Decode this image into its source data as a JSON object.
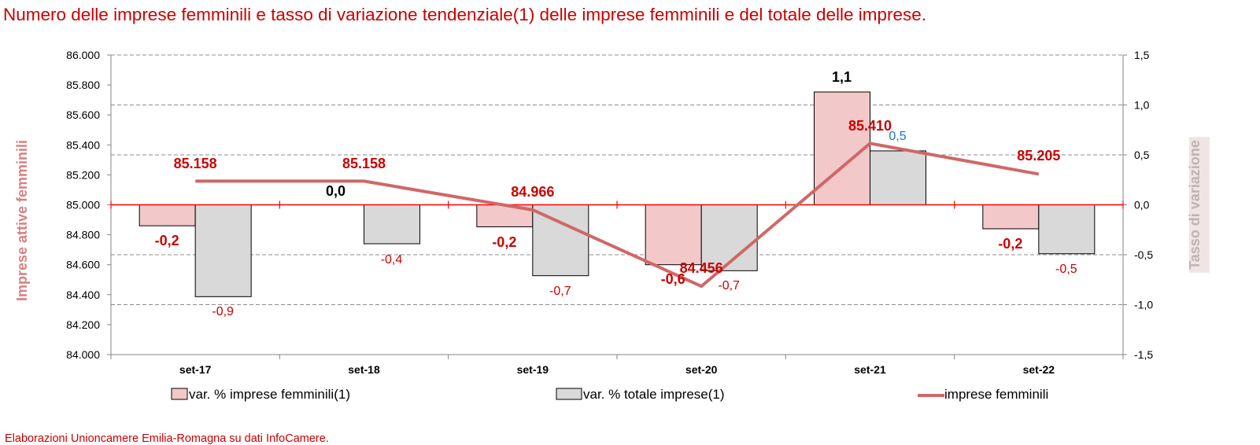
{
  "title": "Numero delle imprese femminili e tasso di variazione tendenziale(1) delle imprese femminili e del totale delle imprese.",
  "footer": "Elaborazioni Unioncamere Emilia-Romagna su dati InfoCamere.",
  "colors": {
    "accent_red": "#cc0000",
    "series_fem_bar": "#f2c8c8",
    "series_tot_bar": "#d9d9d9",
    "series_line": "#d06767",
    "zero_line": "#ff0000",
    "left_axis_title": "#d98080",
    "right_axis_title": "#bfb3b3",
    "blue_label": "#1f6fc6"
  },
  "chart_data": {
    "type": "bar+line",
    "categories": [
      "set-17",
      "set-18",
      "set-19",
      "set-20",
      "set-21",
      "set-22"
    ],
    "y_left": {
      "label": "Imprese attive femminili",
      "range": [
        84000,
        86000
      ],
      "ticks": [
        "84.000",
        "84.200",
        "84.400",
        "84.600",
        "84.800",
        "85.000",
        "85.200",
        "85.400",
        "85.600",
        "85.800",
        "86.000"
      ]
    },
    "y_right": {
      "label": "Tasso di variazione",
      "range": [
        -1.5,
        1.5
      ],
      "ticks": [
        "-1,5",
        "-1,0",
        "-0,5",
        "0,0",
        "0,5",
        "1,0",
        "1,5"
      ]
    },
    "grid": true,
    "legend_position": "bottom",
    "series": [
      {
        "name": "var. % imprese femminili(1)",
        "kind": "bar",
        "axis": "right",
        "values": [
          -0.21,
          0.0,
          -0.22,
          -0.6,
          1.13,
          -0.24
        ],
        "labels": [
          "-0,2",
          "0,0",
          "-0,2",
          "-0,6",
          "1,1",
          "-0,2"
        ]
      },
      {
        "name": "var. % totale imprese(1)",
        "kind": "bar",
        "axis": "right",
        "values": [
          -0.92,
          -0.39,
          -0.71,
          -0.66,
          0.54,
          -0.49
        ],
        "labels": [
          "-0,9",
          "-0,4",
          "-0,7",
          "-0,7",
          "0,5",
          "-0,5"
        ]
      },
      {
        "name": "imprese femminili",
        "kind": "line",
        "axis": "left",
        "values": [
          85158,
          85158,
          84966,
          84456,
          85410,
          85205
        ],
        "labels": [
          "85.158",
          "85.158",
          "84.966",
          "84.456",
          "85.410",
          "85.205"
        ]
      }
    ]
  }
}
